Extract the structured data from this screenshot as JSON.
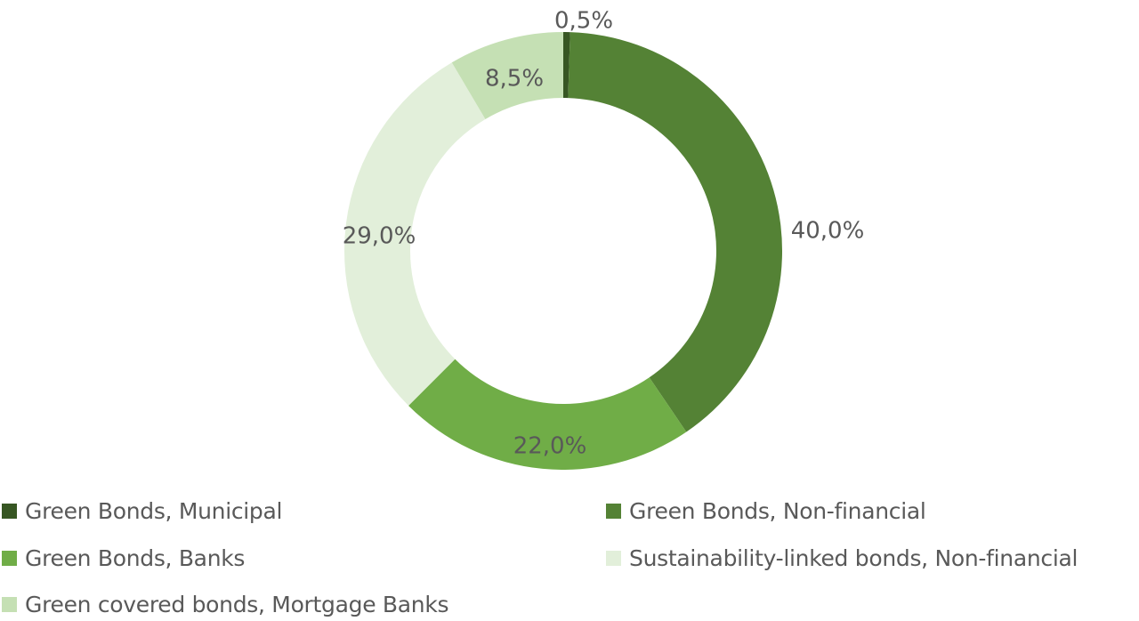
{
  "chart_data": {
    "type": "pie",
    "variant": "donut",
    "title": "",
    "start_angle_deg": 0,
    "direction": "clockwise",
    "categories": [
      "Green Bonds, Municipal",
      "Green Bonds, Non-financial",
      "Green Bonds, Banks",
      "Sustainability-linked bonds, Non-financial",
      "Green covered bonds, Mortgage Banks"
    ],
    "values": [
      0.5,
      40.0,
      22.0,
      29.0,
      8.5
    ],
    "value_labels": [
      "0,5%",
      "40,0%",
      "22,0%",
      "29,0%",
      "8,5%"
    ],
    "colors": [
      "#375623",
      "#548235",
      "#70AD47",
      "#E2EFDA",
      "#C5E0B4"
    ],
    "unit": "%",
    "legend_position": "bottom"
  },
  "legend": {
    "items": [
      {
        "label": "Green Bonds, Municipal",
        "color": "#375623"
      },
      {
        "label": "Green Bonds, Non-financial",
        "color": "#548235"
      },
      {
        "label": "Green Bonds, Banks",
        "color": "#70AD47"
      },
      {
        "label": "Sustainability-linked bonds, Non-financial",
        "color": "#E2EFDA"
      },
      {
        "label": "Green covered bonds, Mortgage Banks",
        "color": "#C5E0B4"
      }
    ]
  }
}
